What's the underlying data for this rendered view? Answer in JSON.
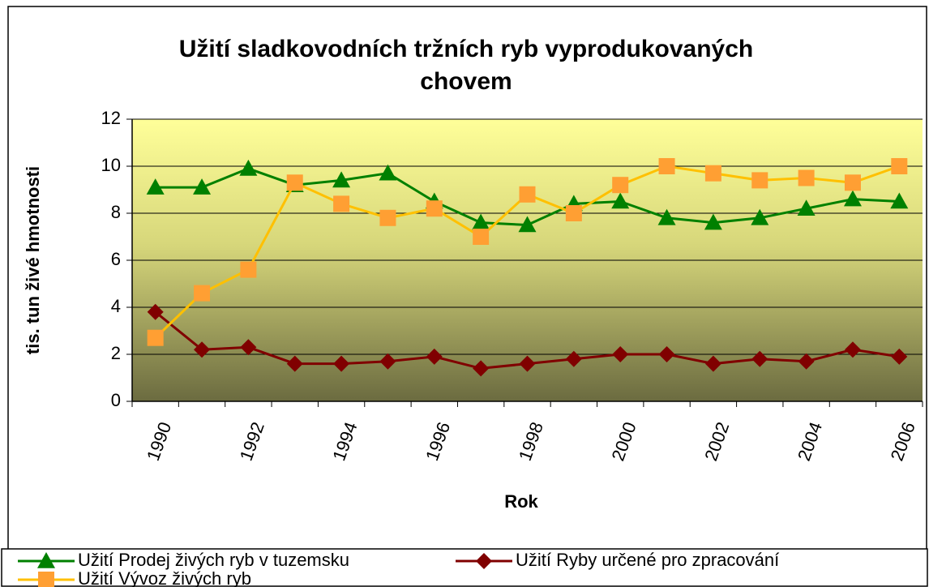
{
  "chart_data": {
    "type": "line",
    "title": [
      "Užití sladkovodních tržních ryb vyprodukovaných",
      "chovem"
    ],
    "x_label": "Rok",
    "y_label": "tis. tun živé hmotnosti",
    "categories": [
      "1990",
      null,
      "1992",
      null,
      "1994",
      null,
      "1996",
      null,
      "1998",
      null,
      "2000",
      null,
      "2002",
      null,
      "2004",
      null,
      "2006"
    ],
    "ylim": [
      0,
      12
    ],
    "yticks": [
      0,
      2,
      4,
      6,
      8,
      10,
      12
    ],
    "grid": true,
    "series": [
      {
        "name": "Užití Prodej živých ryb v tuzemsku",
        "color": "#008000",
        "marker": "triangle",
        "values": [
          9.1,
          9.1,
          9.9,
          9.2,
          9.4,
          9.7,
          8.5,
          7.6,
          7.5,
          8.4,
          8.5,
          7.8,
          7.6,
          7.8,
          8.2,
          8.6,
          8.5
        ]
      },
      {
        "name": "Užití Ryby určené pro zpracování",
        "color": "#800000",
        "marker": "diamond",
        "values": [
          3.8,
          2.2,
          2.3,
          1.6,
          1.6,
          1.7,
          1.9,
          1.4,
          1.6,
          1.8,
          2.0,
          2.0,
          1.6,
          1.8,
          1.7,
          2.2,
          1.9
        ]
      },
      {
        "name": "Užití Vývoz živých ryb",
        "color": "#ffc000",
        "marker": "square",
        "values": [
          2.7,
          4.6,
          5.6,
          9.3,
          8.4,
          7.8,
          8.2,
          7.0,
          8.8,
          8.0,
          9.2,
          10.0,
          9.7,
          9.4,
          9.5,
          9.3,
          10.0
        ]
      }
    ]
  }
}
